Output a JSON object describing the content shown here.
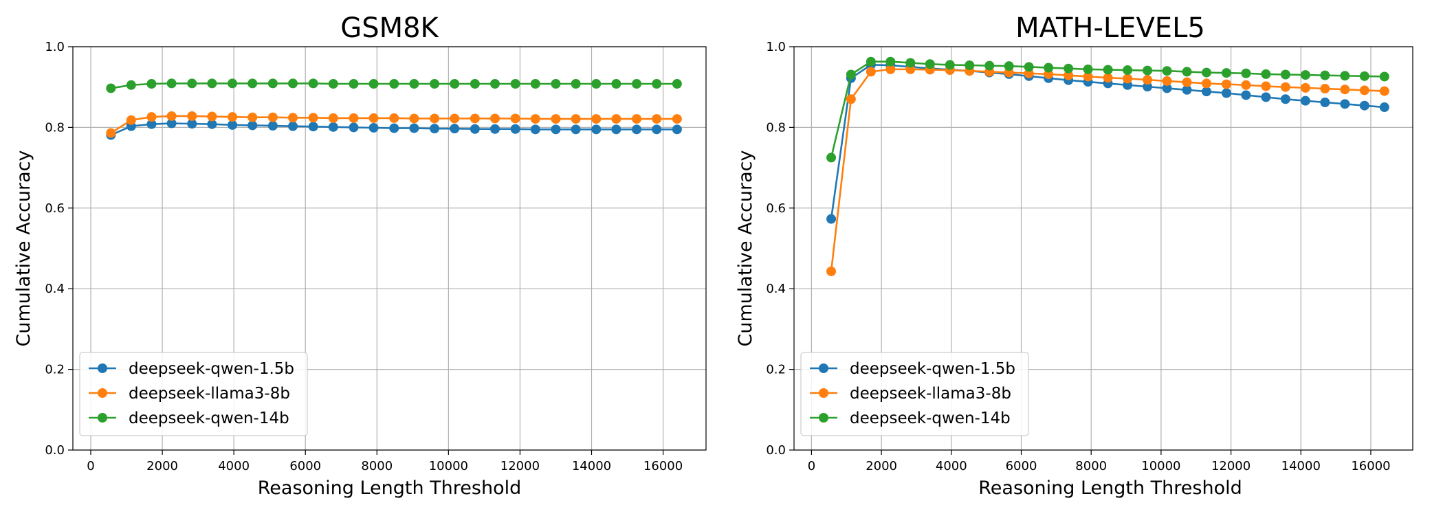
{
  "chart_data": [
    {
      "type": "line",
      "title": "GSM8K",
      "xlabel": "Reasoning Length Threshold",
      "ylabel": "Cumulative Accuracy",
      "xlim": [
        -500,
        17200
      ],
      "ylim": [
        0.0,
        1.0
      ],
      "xticks": [
        0,
        2000,
        4000,
        6000,
        8000,
        10000,
        12000,
        14000,
        16000
      ],
      "yticks": [
        0.0,
        0.2,
        0.4,
        0.6,
        0.8,
        1.0
      ],
      "ytick_labels": [
        "0.0",
        "0.2",
        "0.4",
        "0.6",
        "0.8",
        "1.0"
      ],
      "grid": true,
      "legend_position": "lower-left",
      "x": [
        563,
        1130,
        1700,
        2260,
        2830,
        3390,
        3960,
        4520,
        5090,
        5650,
        6220,
        6780,
        7350,
        7910,
        8480,
        9040,
        9610,
        10170,
        10740,
        11300,
        11870,
        12430,
        13000,
        13560,
        14130,
        14690,
        15260,
        15820,
        16390
      ],
      "series": [
        {
          "name": "deepseek-qwen-1.5b",
          "color": "#1f77b4",
          "values": [
            0.781,
            0.803,
            0.808,
            0.81,
            0.809,
            0.808,
            0.806,
            0.805,
            0.804,
            0.803,
            0.802,
            0.801,
            0.8,
            0.799,
            0.798,
            0.798,
            0.797,
            0.797,
            0.796,
            0.796,
            0.796,
            0.795,
            0.795,
            0.795,
            0.795,
            0.795,
            0.795,
            0.795,
            0.795
          ]
        },
        {
          "name": "deepseek-llama3-8b",
          "color": "#ff7f0e",
          "values": [
            0.786,
            0.818,
            0.826,
            0.828,
            0.828,
            0.827,
            0.826,
            0.825,
            0.825,
            0.824,
            0.824,
            0.823,
            0.823,
            0.823,
            0.823,
            0.822,
            0.822,
            0.822,
            0.822,
            0.822,
            0.822,
            0.821,
            0.821,
            0.821,
            0.821,
            0.821,
            0.821,
            0.821,
            0.821
          ]
        },
        {
          "name": "deepseek-qwen-14b",
          "color": "#2ca02c",
          "values": [
            0.897,
            0.905,
            0.908,
            0.909,
            0.909,
            0.909,
            0.909,
            0.909,
            0.909,
            0.909,
            0.909,
            0.908,
            0.908,
            0.908,
            0.908,
            0.908,
            0.908,
            0.908,
            0.908,
            0.908,
            0.908,
            0.908,
            0.908,
            0.908,
            0.908,
            0.908,
            0.908,
            0.908,
            0.908
          ]
        }
      ]
    },
    {
      "type": "line",
      "title": "MATH-LEVEL5",
      "xlabel": "Reasoning Length Threshold",
      "ylabel": "Cumulative Accuracy",
      "xlim": [
        -500,
        17200
      ],
      "ylim": [
        0.0,
        1.0
      ],
      "xticks": [
        0,
        2000,
        4000,
        6000,
        8000,
        10000,
        12000,
        14000,
        16000
      ],
      "yticks": [
        0.0,
        0.2,
        0.4,
        0.6,
        0.8,
        1.0
      ],
      "ytick_labels": [
        "0.0",
        "0.2",
        "0.4",
        "0.6",
        "0.8",
        "1.0"
      ],
      "grid": true,
      "legend_position": "lower-left",
      "x": [
        563,
        1130,
        1700,
        2260,
        2830,
        3390,
        3960,
        4520,
        5090,
        5650,
        6220,
        6780,
        7350,
        7910,
        8480,
        9040,
        9610,
        10170,
        10740,
        11300,
        11870,
        12430,
        13000,
        13560,
        14130,
        14690,
        15260,
        15820,
        16390
      ],
      "series": [
        {
          "name": "deepseek-qwen-1.5b",
          "color": "#1f77b4",
          "values": [
            0.573,
            0.922,
            0.955,
            0.954,
            0.95,
            0.946,
            0.943,
            0.94,
            0.936,
            0.932,
            0.927,
            0.922,
            0.917,
            0.913,
            0.909,
            0.905,
            0.901,
            0.897,
            0.893,
            0.889,
            0.885,
            0.88,
            0.875,
            0.87,
            0.866,
            0.862,
            0.858,
            0.854,
            0.85
          ]
        },
        {
          "name": "deepseek-llama3-8b",
          "color": "#ff7f0e",
          "values": [
            0.443,
            0.87,
            0.938,
            0.944,
            0.944,
            0.943,
            0.942,
            0.94,
            0.938,
            0.936,
            0.934,
            0.932,
            0.929,
            0.926,
            0.923,
            0.921,
            0.918,
            0.915,
            0.912,
            0.909,
            0.907,
            0.905,
            0.902,
            0.9,
            0.898,
            0.896,
            0.894,
            0.892,
            0.89
          ]
        },
        {
          "name": "deepseek-qwen-14b",
          "color": "#2ca02c",
          "values": [
            0.725,
            0.931,
            0.963,
            0.963,
            0.96,
            0.957,
            0.955,
            0.954,
            0.953,
            0.952,
            0.95,
            0.948,
            0.946,
            0.944,
            0.943,
            0.942,
            0.941,
            0.94,
            0.938,
            0.936,
            0.935,
            0.934,
            0.932,
            0.931,
            0.93,
            0.929,
            0.928,
            0.927,
            0.926
          ]
        }
      ]
    }
  ]
}
